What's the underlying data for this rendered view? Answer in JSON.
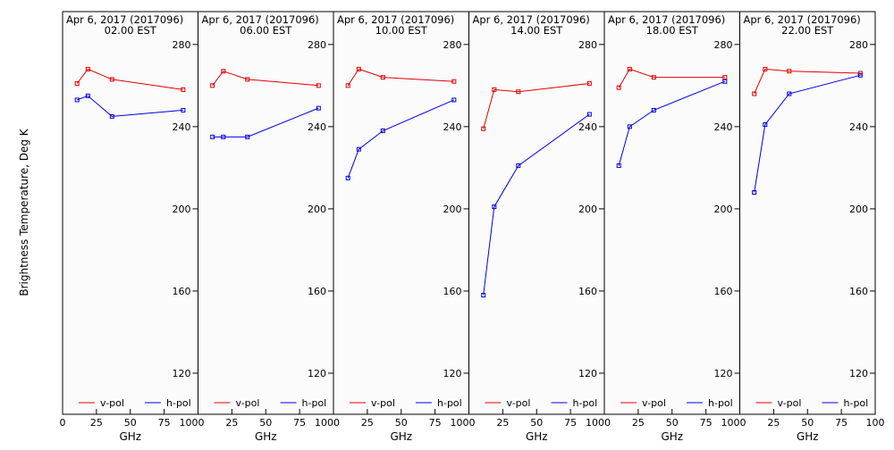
{
  "figure": {
    "ylabel": "Brightness Temperature, Deg K",
    "xlabel": "GHz",
    "xticks": [
      0,
      25,
      50,
      75,
      100
    ],
    "yticks": [
      120,
      160,
      200,
      240,
      280
    ],
    "colors": {
      "v_pol": "#e00000",
      "h_pol": "#0000e0",
      "frame": "#000000",
      "background": "#fbfbfb"
    },
    "legend_labels": [
      "v-pol",
      "h-pol"
    ]
  },
  "chart_data": [
    {
      "type": "line",
      "title": "Apr  6, 2017 (2017096)",
      "subtitle": "02.00 EST",
      "xlabel": "GHz",
      "ylabel": "Brightness Temperature, Deg K",
      "xlim": [
        0,
        100
      ],
      "ylim": [
        100,
        296
      ],
      "x": [
        10.7,
        18.7,
        36.5,
        89.0
      ],
      "series": [
        {
          "name": "v-pol",
          "color": "#e00000",
          "values": [
            261,
            268,
            263,
            258
          ]
        },
        {
          "name": "h-pol",
          "color": "#0000e0",
          "values": [
            253,
            255,
            245,
            248
          ]
        }
      ]
    },
    {
      "type": "line",
      "title": "Apr  6, 2017 (2017096)",
      "subtitle": "06.00 EST",
      "xlabel": "GHz",
      "xlim": [
        0,
        100
      ],
      "ylim": [
        100,
        296
      ],
      "x": [
        10.7,
        18.7,
        36.5,
        89.0
      ],
      "series": [
        {
          "name": "v-pol",
          "color": "#e00000",
          "values": [
            260,
            267,
            263,
            260
          ]
        },
        {
          "name": "h-pol",
          "color": "#0000e0",
          "values": [
            235,
            235,
            235,
            249
          ]
        }
      ]
    },
    {
      "type": "line",
      "title": "Apr  6, 2017 (2017096)",
      "subtitle": "10.00 EST",
      "xlabel": "GHz",
      "xlim": [
        0,
        100
      ],
      "ylim": [
        100,
        296
      ],
      "x": [
        10.7,
        18.7,
        36.5,
        89.0
      ],
      "series": [
        {
          "name": "v-pol",
          "color": "#e00000",
          "values": [
            260,
            268,
            264,
            262
          ]
        },
        {
          "name": "h-pol",
          "color": "#0000e0",
          "values": [
            215,
            229,
            238,
            253
          ]
        }
      ]
    },
    {
      "type": "line",
      "title": "Apr  6, 2017 (2017096)",
      "subtitle": "14.00 EST",
      "xlabel": "GHz",
      "xlim": [
        0,
        100
      ],
      "ylim": [
        100,
        296
      ],
      "x": [
        10.7,
        18.7,
        36.5,
        89.0
      ],
      "series": [
        {
          "name": "v-pol",
          "color": "#e00000",
          "values": [
            239,
            258,
            257,
            261
          ]
        },
        {
          "name": "h-pol",
          "color": "#0000e0",
          "values": [
            158,
            201,
            221,
            246
          ]
        }
      ]
    },
    {
      "type": "line",
      "title": "Apr  6, 2017 (2017096)",
      "subtitle": "18.00 EST",
      "xlabel": "GHz",
      "xlim": [
        0,
        100
      ],
      "ylim": [
        100,
        296
      ],
      "x": [
        10.7,
        18.7,
        36.5,
        89.0
      ],
      "series": [
        {
          "name": "v-pol",
          "color": "#e00000",
          "values": [
            259,
            268,
            264,
            264
          ]
        },
        {
          "name": "h-pol",
          "color": "#0000e0",
          "values": [
            221,
            240,
            248,
            262
          ]
        }
      ]
    },
    {
      "type": "line",
      "title": "Apr  6, 2017 (2017096)",
      "subtitle": "22.00 EST",
      "xlabel": "GHz",
      "xlim": [
        0,
        100
      ],
      "ylim": [
        100,
        296
      ],
      "x": [
        10.7,
        18.7,
        36.5,
        89.0
      ],
      "series": [
        {
          "name": "v-pol",
          "color": "#e00000",
          "values": [
            256,
            268,
            267,
            266
          ]
        },
        {
          "name": "h-pol",
          "color": "#0000e0",
          "values": [
            208,
            241,
            256,
            265
          ]
        }
      ]
    }
  ]
}
